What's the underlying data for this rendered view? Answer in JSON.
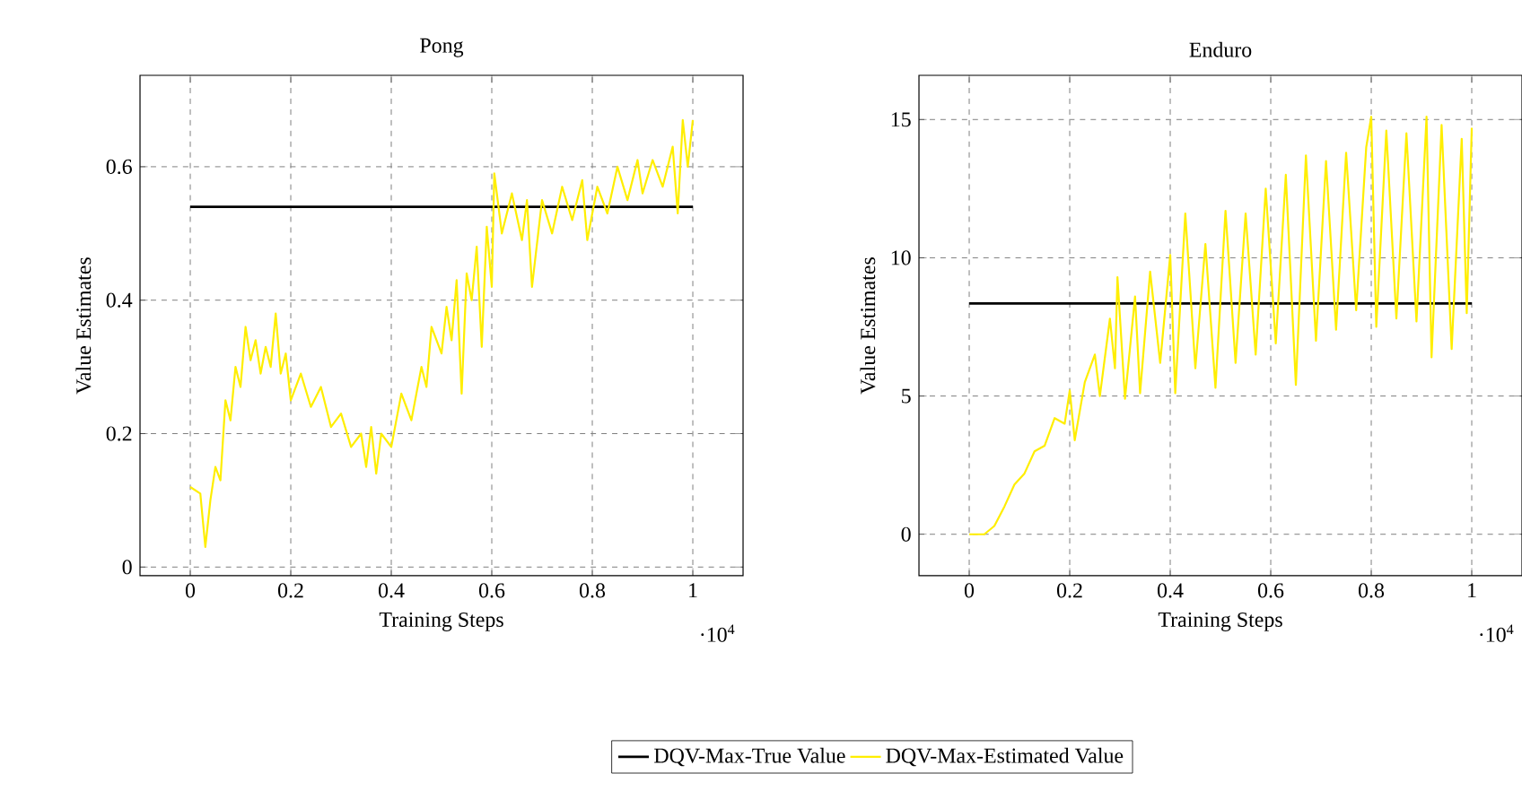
{
  "chart_data": [
    {
      "type": "line",
      "title": "Pong",
      "xlabel": "Training Steps",
      "ylabel": "Value Estimates",
      "xlim": [
        -0.1,
        1.1
      ],
      "ylim": [
        -0.013,
        0.737
      ],
      "xticks": [
        0,
        0.2,
        0.4,
        0.6,
        0.8,
        1
      ],
      "yticks": [
        0,
        0.2,
        0.4,
        0.6
      ],
      "grid": true,
      "legend": "bottom",
      "marker": "none",
      "line_style": "solid",
      "annotations": [
        "·10$^{4}$"
      ],
      "series": [
        {
          "name": "DQV-Max-True Value",
          "color": "#000000",
          "x": [
            0,
            1
          ],
          "values": [
            0.54,
            0.54
          ]
        },
        {
          "name": "DQV-Max-Estimated Value",
          "color": "#ffee00",
          "x": [
            0,
            0.02,
            0.03,
            0.04,
            0.05,
            0.06,
            0.07,
            0.08,
            0.09,
            0.1,
            0.11,
            0.12,
            0.13,
            0.14,
            0.15,
            0.16,
            0.17,
            0.18,
            0.19,
            0.2,
            0.22,
            0.24,
            0.26,
            0.28,
            0.3,
            0.32,
            0.34,
            0.35,
            0.36,
            0.37,
            0.38,
            0.4,
            0.42,
            0.44,
            0.46,
            0.47,
            0.48,
            0.5,
            0.51,
            0.52,
            0.53,
            0.54,
            0.55,
            0.56,
            0.57,
            0.58,
            0.59,
            0.6,
            0.605,
            0.62,
            0.64,
            0.66,
            0.67,
            0.68,
            0.7,
            0.72,
            0.74,
            0.76,
            0.78,
            0.79,
            0.81,
            0.83,
            0.85,
            0.87,
            0.89,
            0.9,
            0.92,
            0.94,
            0.96,
            0.97,
            0.98,
            0.99,
            1.0
          ],
          "values": [
            0.12,
            0.11,
            0.03,
            0.1,
            0.15,
            0.13,
            0.25,
            0.22,
            0.3,
            0.27,
            0.36,
            0.31,
            0.34,
            0.29,
            0.33,
            0.3,
            0.38,
            0.29,
            0.32,
            0.25,
            0.29,
            0.24,
            0.27,
            0.21,
            0.23,
            0.18,
            0.2,
            0.15,
            0.21,
            0.14,
            0.2,
            0.18,
            0.26,
            0.22,
            0.3,
            0.27,
            0.36,
            0.32,
            0.39,
            0.34,
            0.43,
            0.26,
            0.44,
            0.4,
            0.48,
            0.33,
            0.51,
            0.42,
            0.59,
            0.5,
            0.56,
            0.49,
            0.55,
            0.42,
            0.55,
            0.5,
            0.57,
            0.52,
            0.58,
            0.49,
            0.57,
            0.53,
            0.6,
            0.55,
            0.61,
            0.56,
            0.61,
            0.57,
            0.63,
            0.53,
            0.67,
            0.6,
            0.67
          ]
        }
      ]
    },
    {
      "type": "line",
      "title": "Enduro",
      "xlabel": "Training Steps",
      "ylabel": "Value Estimates",
      "xlim": [
        -0.1,
        1.1
      ],
      "ylim": [
        -1.5,
        16.6
      ],
      "xticks": [
        0,
        0.2,
        0.4,
        0.6,
        0.8,
        1
      ],
      "yticks": [
        0,
        5,
        10,
        15
      ],
      "grid": true,
      "marker": "none",
      "line_style": "solid",
      "annotations": [
        "·10$^{4}$"
      ],
      "series": [
        {
          "color": "#000000",
          "x": [
            0,
            1
          ],
          "values": [
            8.35,
            8.35
          ]
        },
        {
          "color": "#ffee00",
          "x": [
            0,
            0.03,
            0.05,
            0.07,
            0.09,
            0.11,
            0.13,
            0.15,
            0.17,
            0.19,
            0.2,
            0.21,
            0.23,
            0.25,
            0.26,
            0.28,
            0.29,
            0.295,
            0.31,
            0.33,
            0.34,
            0.36,
            0.38,
            0.4,
            0.41,
            0.43,
            0.45,
            0.47,
            0.49,
            0.51,
            0.53,
            0.55,
            0.57,
            0.59,
            0.61,
            0.63,
            0.65,
            0.67,
            0.69,
            0.71,
            0.73,
            0.75,
            0.77,
            0.79,
            0.8,
            0.81,
            0.83,
            0.85,
            0.87,
            0.89,
            0.91,
            0.92,
            0.94,
            0.96,
            0.98,
            0.99,
            1.0
          ],
          "values": [
            0,
            0,
            0.3,
            1.0,
            1.8,
            2.2,
            3.0,
            3.2,
            4.2,
            4.0,
            5.2,
            3.4,
            5.5,
            6.5,
            5.0,
            7.8,
            6.0,
            9.3,
            4.9,
            8.6,
            5.1,
            9.5,
            6.2,
            10.1,
            5.1,
            11.6,
            6.0,
            10.5,
            5.3,
            11.7,
            6.2,
            11.6,
            6.5,
            12.5,
            6.9,
            13.0,
            5.4,
            13.7,
            7.0,
            13.5,
            7.4,
            13.8,
            8.1,
            14.0,
            15.1,
            7.5,
            14.6,
            7.8,
            14.5,
            7.7,
            15.1,
            6.4,
            14.8,
            6.7,
            14.3,
            8.0,
            14.7
          ]
        }
      ]
    }
  ]
}
